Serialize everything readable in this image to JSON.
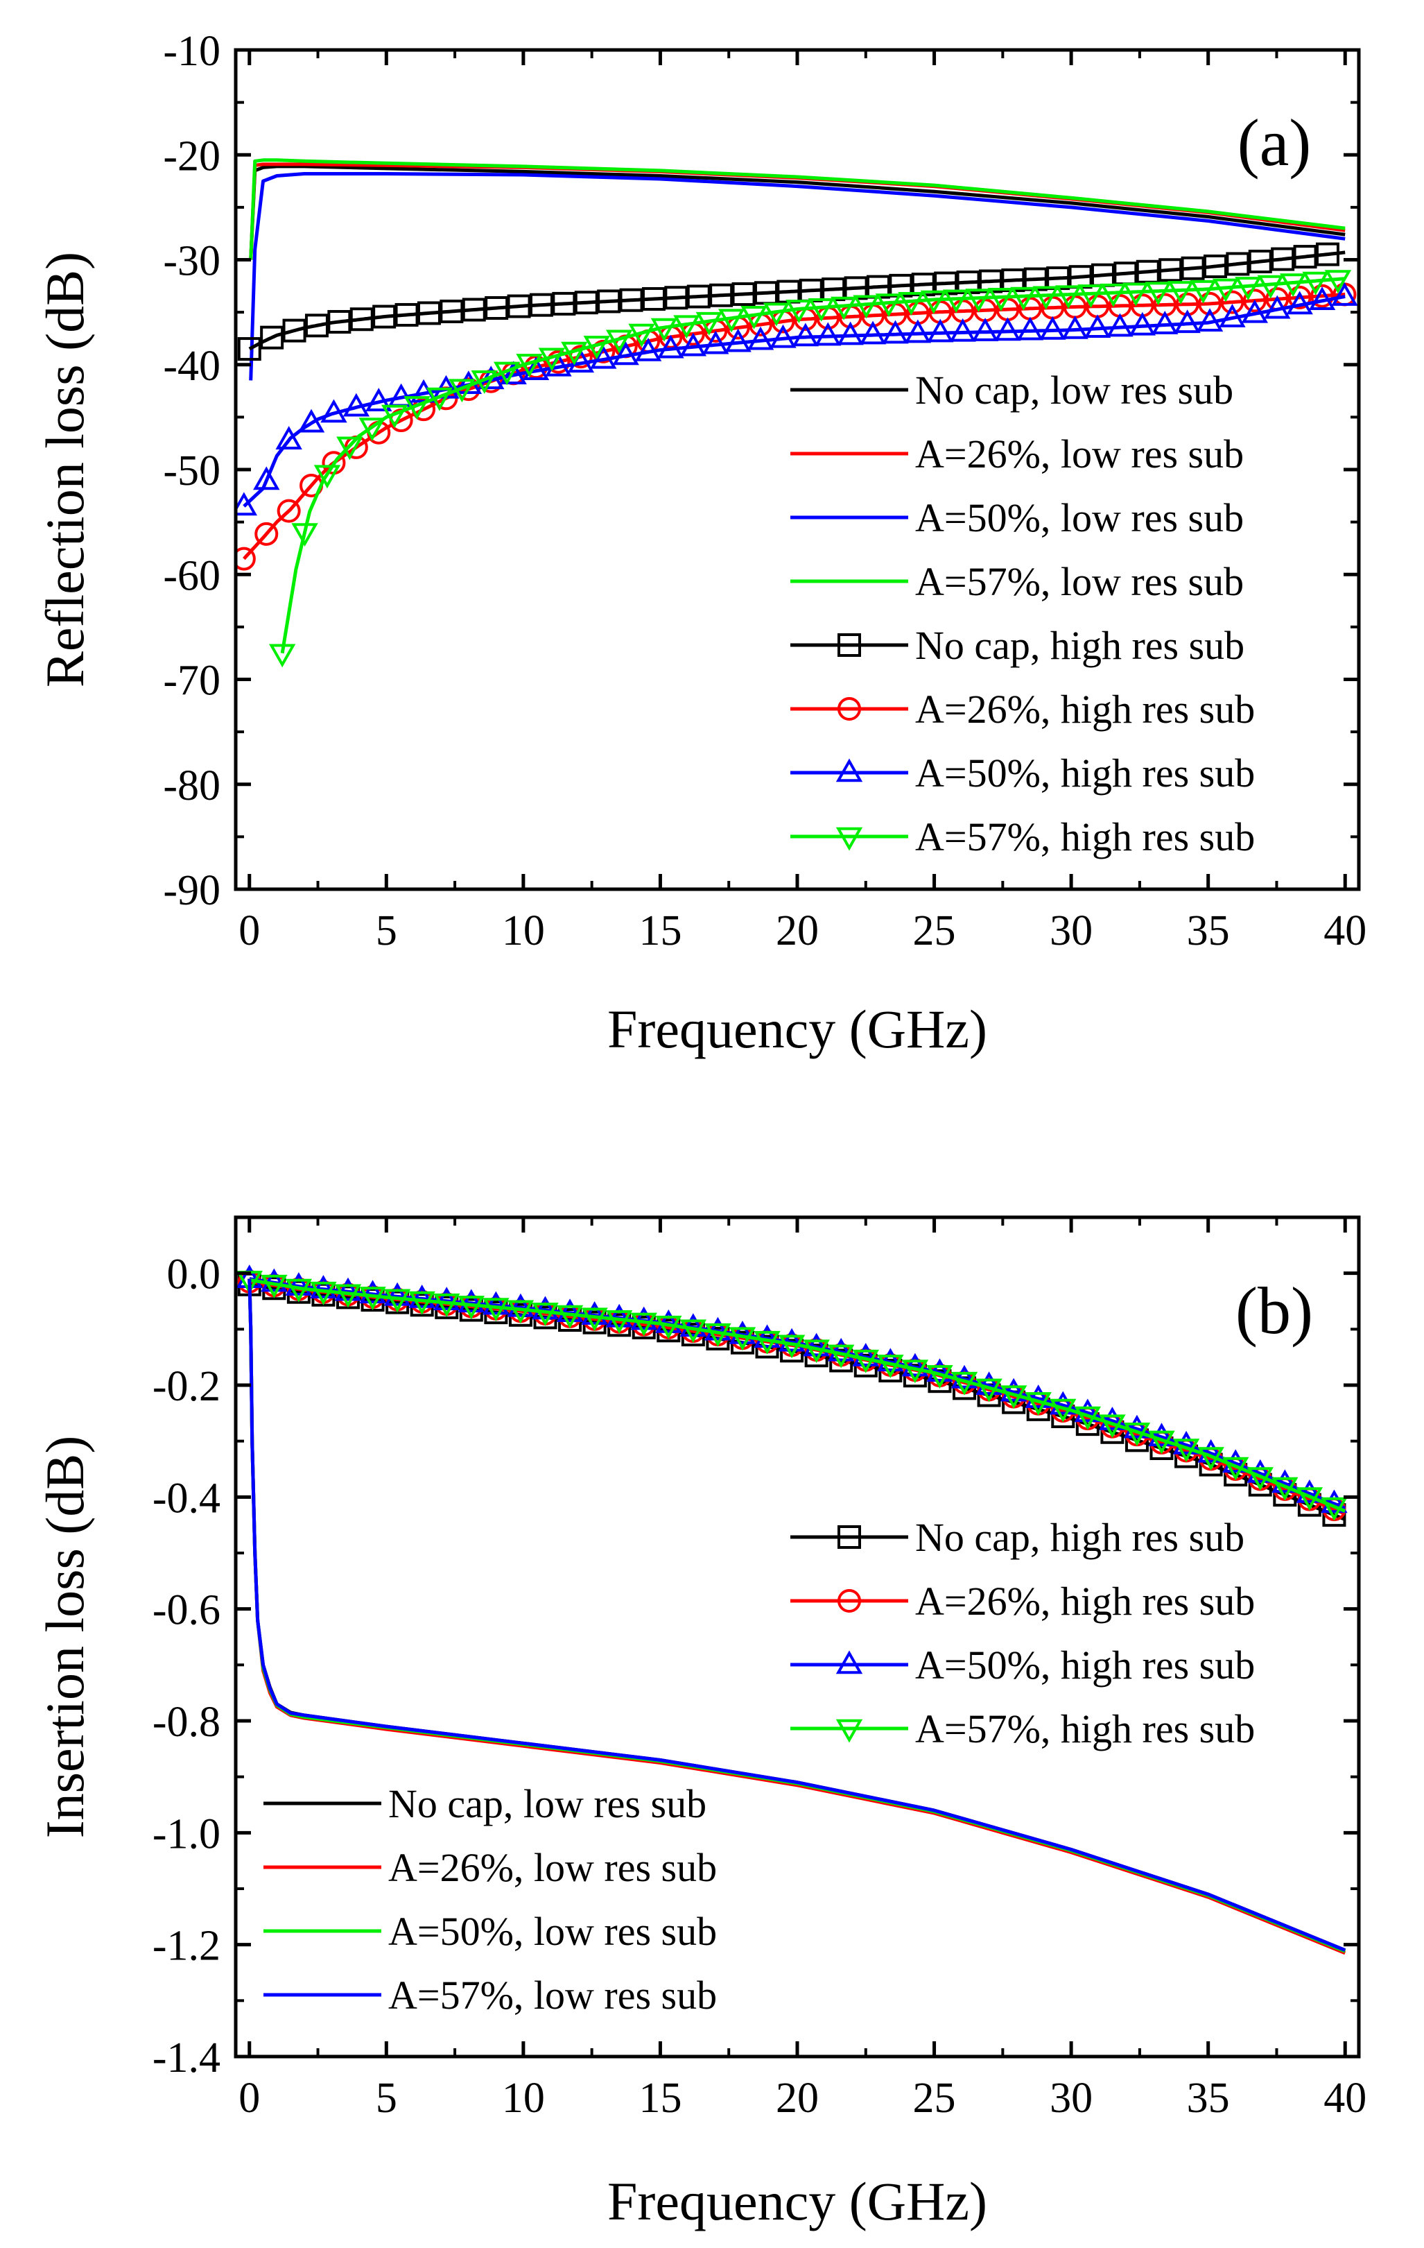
{
  "colors": {
    "black": "#000000",
    "red": "#ff0000",
    "blue": "#0000ff",
    "green": "#00ee00"
  },
  "chart_data": [
    {
      "type": "line",
      "panel_label": "(a)",
      "xlabel": "Frequency (GHz)",
      "ylabel": "Reflection loss (dB)",
      "xlim": [
        -0.5,
        40.5
      ],
      "ylim": [
        -90,
        -10
      ],
      "xticks": [
        0,
        5,
        10,
        15,
        20,
        25,
        30,
        35,
        40
      ],
      "yticks": [
        -90,
        -80,
        -70,
        -60,
        -50,
        -40,
        -30,
        -20,
        -10
      ],
      "legend_position": "right",
      "series": [
        {
          "name": "No cap, low res sub",
          "color": "#000000",
          "marker": "none",
          "x": [
            0.05,
            0.2,
            0.5,
            1,
            2,
            5,
            10,
            15,
            20,
            25,
            30,
            35,
            40
          ],
          "y": [
            -30,
            -21.5,
            -21.2,
            -21.1,
            -21.1,
            -21.3,
            -21.6,
            -22,
            -22.6,
            -23.5,
            -24.6,
            -25.9,
            -27.6
          ]
        },
        {
          "name": "A=26%, low res sub",
          "color": "#ff0000",
          "marker": "none",
          "x": [
            0.05,
            0.2,
            0.5,
            1,
            2,
            5,
            10,
            15,
            20,
            25,
            30,
            35,
            40
          ],
          "y": [
            -30,
            -21,
            -20.9,
            -20.9,
            -20.9,
            -21,
            -21.2,
            -21.6,
            -22.2,
            -23,
            -24.2,
            -25.5,
            -27.2
          ]
        },
        {
          "name": "A=50%, low res sub",
          "color": "#0000ff",
          "marker": "none",
          "x": [
            0.05,
            0.2,
            0.5,
            1,
            2,
            5,
            10,
            15,
            20,
            25,
            30,
            35,
            40
          ],
          "y": [
            -41.5,
            -29,
            -22.5,
            -22,
            -21.8,
            -21.8,
            -21.9,
            -22.3,
            -23,
            -23.9,
            -25,
            -26.3,
            -28
          ]
        },
        {
          "name": "A=57%, low res sub",
          "color": "#00ee00",
          "marker": "none",
          "x": [
            0.05,
            0.2,
            0.5,
            1,
            2,
            5,
            10,
            15,
            20,
            25,
            30,
            35,
            40
          ],
          "y": [
            -30,
            -20.6,
            -20.5,
            -20.5,
            -20.6,
            -20.8,
            -21.1,
            -21.5,
            -22.1,
            -22.9,
            -24.1,
            -25.4,
            -27
          ]
        },
        {
          "name": "No cap, high res sub",
          "color": "#000000",
          "marker": "square",
          "x": [
            0,
            0.5,
            1,
            2,
            3,
            5,
            7.5,
            10,
            15,
            20,
            25,
            30,
            35,
            40
          ],
          "y": [
            -38.5,
            -37.8,
            -37.2,
            -36.5,
            -36,
            -35.4,
            -34.9,
            -34.4,
            -33.7,
            -33,
            -32.3,
            -31.7,
            -30.7,
            -29.3
          ]
        },
        {
          "name": "A=26%, high res sub",
          "color": "#ff0000",
          "marker": "circle",
          "x": [
            -0.2,
            0.5,
            1,
            1.5,
            2,
            2.5,
            3,
            4,
            5,
            7.5,
            10,
            15,
            20,
            25,
            30,
            35,
            40
          ],
          "y": [
            -58.5,
            -56.5,
            -55,
            -53.8,
            -52.3,
            -50.8,
            -49.5,
            -47.7,
            -46,
            -42.8,
            -40.5,
            -37.5,
            -35.7,
            -35,
            -34.5,
            -34.2,
            -33.3
          ]
        },
        {
          "name": "A=50%, high res sub",
          "color": "#0000ff",
          "marker": "triangle-up",
          "x": [
            -0.2,
            0.5,
            1,
            1.5,
            2,
            2.5,
            3,
            4,
            5,
            7.5,
            10,
            15,
            20,
            25,
            30,
            35,
            40
          ],
          "y": [
            -53.5,
            -51.8,
            -48.7,
            -47,
            -46,
            -45.2,
            -44.7,
            -44,
            -43.4,
            -42.2,
            -40.8,
            -38.6,
            -37.4,
            -37,
            -36.7,
            -36,
            -33.5
          ]
        },
        {
          "name": "A=57%, high res sub",
          "color": "#00ee00",
          "marker": "triangle-down",
          "x": [
            1.2,
            1.7,
            2.2,
            2.7,
            3.2,
            4,
            5,
            7.5,
            10,
            15,
            20,
            25,
            30,
            35,
            40
          ],
          "y": [
            -67.5,
            -59.5,
            -54,
            -51,
            -49,
            -46.8,
            -45,
            -42.5,
            -40,
            -36.5,
            -34.7,
            -33.8,
            -33.3,
            -32.8,
            -31.8
          ]
        }
      ]
    },
    {
      "type": "line",
      "panel_label": "(b)",
      "xlabel": "Frequency (GHz)",
      "ylabel": "Insertion loss (dB)",
      "xlim": [
        -0.5,
        40.5
      ],
      "ylim": [
        -1.4,
        0.1
      ],
      "xticks": [
        0,
        5,
        10,
        15,
        20,
        25,
        30,
        35,
        40
      ],
      "yticks": [
        -1.4,
        -1.2,
        -1.0,
        -0.8,
        -0.6,
        -0.4,
        -0.2,
        0.0
      ],
      "legend_position": "right and bottom-left",
      "series": [
        {
          "name": "No cap, high res sub",
          "color": "#000000",
          "marker": "square",
          "x": [
            0,
            2,
            5,
            10,
            15,
            20,
            25,
            30,
            35,
            40
          ],
          "y": [
            -0.02,
            -0.035,
            -0.05,
            -0.075,
            -0.1,
            -0.14,
            -0.19,
            -0.26,
            -0.34,
            -0.44
          ]
        },
        {
          "name": "A=26%, high res sub",
          "color": "#ff0000",
          "marker": "circle",
          "x": [
            0,
            2,
            5,
            10,
            15,
            20,
            25,
            30,
            35,
            40
          ],
          "y": [
            -0.015,
            -0.03,
            -0.045,
            -0.068,
            -0.095,
            -0.13,
            -0.18,
            -0.25,
            -0.33,
            -0.43
          ]
        },
        {
          "name": "A=50%, high res sub",
          "color": "#0000ff",
          "marker": "triangle-up",
          "x": [
            0,
            2,
            5,
            10,
            15,
            20,
            25,
            30,
            35,
            40
          ],
          "y": [
            -0.01,
            -0.025,
            -0.04,
            -0.062,
            -0.088,
            -0.125,
            -0.175,
            -0.24,
            -0.32,
            -0.42
          ]
        },
        {
          "name": "A=57%, high res sub",
          "color": "#00ee00",
          "marker": "triangle-down",
          "x": [
            0,
            2,
            5,
            10,
            15,
            20,
            25,
            30,
            35,
            40
          ],
          "y": [
            -0.012,
            -0.028,
            -0.043,
            -0.065,
            -0.09,
            -0.128,
            -0.178,
            -0.245,
            -0.325,
            -0.425
          ]
        },
        {
          "name": "No cap, low res sub",
          "color": "#000000",
          "marker": "none",
          "x": [
            0,
            0.05,
            0.1,
            0.2,
            0.3,
            0.5,
            0.75,
            1,
            1.5,
            2,
            5,
            10,
            15,
            20,
            25,
            30,
            35,
            40
          ],
          "y": [
            -0.01,
            -0.1,
            -0.3,
            -0.5,
            -0.62,
            -0.7,
            -0.74,
            -0.77,
            -0.785,
            -0.79,
            -0.81,
            -0.84,
            -0.87,
            -0.91,
            -0.96,
            -1.03,
            -1.11,
            -1.21
          ]
        },
        {
          "name": "A=26%, low res sub",
          "color": "#ff0000",
          "marker": "none",
          "x": [
            0,
            0.05,
            0.1,
            0.2,
            0.3,
            0.5,
            0.75,
            1,
            1.5,
            2,
            5,
            10,
            15,
            20,
            25,
            30,
            35,
            40
          ],
          "y": [
            -0.01,
            -0.1,
            -0.3,
            -0.5,
            -0.62,
            -0.71,
            -0.75,
            -0.775,
            -0.79,
            -0.795,
            -0.815,
            -0.845,
            -0.875,
            -0.915,
            -0.965,
            -1.035,
            -1.115,
            -1.215
          ]
        },
        {
          "name": "A=50%, low res sub",
          "color": "#00ee00",
          "marker": "none",
          "x": [
            0,
            0.05,
            0.1,
            0.2,
            0.3,
            0.5,
            0.75,
            1,
            1.5,
            2,
            5,
            10,
            15,
            20,
            25,
            30,
            35,
            40
          ],
          "y": [
            -0.01,
            -0.1,
            -0.3,
            -0.5,
            -0.62,
            -0.705,
            -0.745,
            -0.772,
            -0.788,
            -0.793,
            -0.812,
            -0.842,
            -0.872,
            -0.912,
            -0.962,
            -1.032,
            -1.112,
            -1.212
          ]
        },
        {
          "name": "A=57%, low res sub",
          "color": "#0000ff",
          "marker": "none",
          "x": [
            0,
            0.05,
            0.1,
            0.2,
            0.3,
            0.5,
            0.75,
            1,
            1.5,
            2,
            5,
            10,
            15,
            20,
            25,
            30,
            35,
            40
          ],
          "y": [
            -0.01,
            -0.1,
            -0.3,
            -0.5,
            -0.62,
            -0.7,
            -0.742,
            -0.77,
            -0.786,
            -0.79,
            -0.81,
            -0.84,
            -0.87,
            -0.91,
            -0.96,
            -1.03,
            -1.11,
            -1.21
          ]
        }
      ]
    }
  ]
}
